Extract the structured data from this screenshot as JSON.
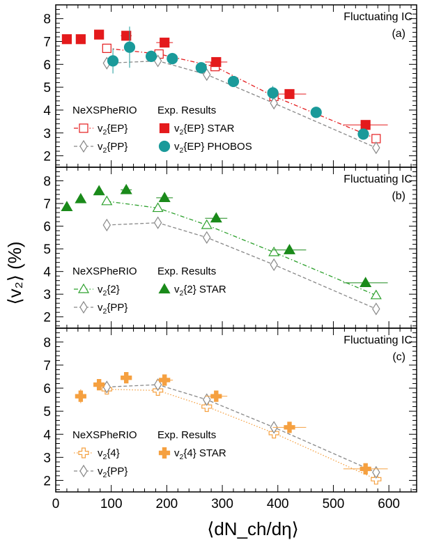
{
  "figure": {
    "xlabel": "⟨dN_ch/dη⟩",
    "ylabel": "⟨v₂⟩ (%)",
    "x_ticks": [
      "0",
      "100",
      "200",
      "300",
      "400",
      "500",
      "600"
    ],
    "y_ticks": [
      "2",
      "3",
      "4",
      "5",
      "6",
      "7",
      "8"
    ]
  },
  "chart_data": [
    {
      "type": "scatter",
      "panel_title": "Fluctuating IC",
      "panel_tag": "(a)",
      "xlim": [
        0,
        650
      ],
      "ylim": [
        1.5,
        8.6
      ],
      "legend": {
        "model_header": "NeXSPheRIO",
        "exp_header": "Exp. Results"
      },
      "series": [
        {
          "name": "v2{EP}",
          "kind": "model",
          "color": "#e41a1c",
          "marker": "square-open",
          "line": "dashdot",
          "x": [
            92,
            186,
            287,
            393,
            577
          ],
          "y": [
            6.7,
            6.45,
            5.9,
            4.6,
            2.75
          ]
        },
        {
          "name": "v2{PP}",
          "kind": "model",
          "color": "#888888",
          "marker": "diamond-open",
          "line": "dash",
          "x": [
            92,
            184,
            272,
            393,
            577
          ],
          "y": [
            6.05,
            6.15,
            5.55,
            4.3,
            2.35
          ]
        },
        {
          "name": "v2{EP} STAR",
          "kind": "exp",
          "color": "#e41a1c",
          "marker": "square",
          "x": [
            20,
            45,
            78,
            127,
            196,
            289,
            421,
            558
          ],
          "y": [
            7.1,
            7.1,
            7.3,
            7.25,
            6.95,
            6.1,
            4.7,
            3.35
          ],
          "xerr": [
            0,
            0,
            0,
            10,
            15,
            20,
            30,
            40
          ]
        },
        {
          "name": "v2{EP} PHOBOS",
          "kind": "exp",
          "color": "#1a9a9a",
          "marker": "circle",
          "x": [
            103,
            133,
            172,
            210,
            262,
            320,
            391,
            469,
            554
          ],
          "y": [
            6.15,
            6.75,
            6.35,
            6.25,
            5.85,
            5.25,
            4.75,
            3.9,
            2.95
          ],
          "yerr": [
            0.55,
            0.9,
            0.25,
            0.25,
            0.2,
            0.2,
            0.3,
            0.2,
            0.2
          ]
        }
      ]
    },
    {
      "type": "scatter",
      "panel_title": "Fluctuating IC",
      "panel_tag": "(b)",
      "xlim": [
        0,
        650
      ],
      "ylim": [
        1.5,
        8.6
      ],
      "legend": {
        "model_header": "NeXSPheRIO",
        "exp_header": "Exp. Results"
      },
      "series": [
        {
          "name": "v2{2}",
          "kind": "model",
          "color": "#2ca02c",
          "marker": "triangle-open",
          "line": "dashdot",
          "x": [
            92,
            184,
            272,
            393,
            577
          ],
          "y": [
            7.1,
            6.8,
            6.05,
            4.85,
            2.95
          ]
        },
        {
          "name": "v2{PP}",
          "kind": "model",
          "color": "#888888",
          "marker": "diamond-open",
          "line": "dash",
          "x": [
            92,
            184,
            272,
            393,
            577
          ],
          "y": [
            6.05,
            6.15,
            5.5,
            4.3,
            2.35
          ]
        },
        {
          "name": "v2{2} STAR",
          "kind": "exp",
          "color": "#1a8a1a",
          "marker": "triangle",
          "x": [
            20,
            45,
            78,
            127,
            196,
            289,
            421,
            558
          ],
          "y": [
            6.85,
            7.2,
            7.55,
            7.6,
            7.25,
            6.35,
            4.95,
            3.5
          ],
          "xerr": [
            0,
            0,
            0,
            10,
            15,
            20,
            30,
            40
          ]
        }
      ]
    },
    {
      "type": "scatter",
      "panel_title": "Fluctuating IC",
      "panel_tag": "(c)",
      "xlim": [
        0,
        650
      ],
      "ylim": [
        1.5,
        8.6
      ],
      "legend": {
        "model_header": "NeXSPheRIO",
        "exp_header": "Exp. Results"
      },
      "series": [
        {
          "name": "v2{4}",
          "kind": "model",
          "color": "#f5a040",
          "marker": "cross-open",
          "line": "dot",
          "x": [
            92,
            184,
            272,
            393,
            577
          ],
          "y": [
            5.95,
            5.9,
            5.2,
            4.05,
            2.05
          ]
        },
        {
          "name": "v2{PP}",
          "kind": "model",
          "color": "#888888",
          "marker": "diamond-open",
          "line": "dash",
          "x": [
            92,
            184,
            272,
            393,
            577
          ],
          "y": [
            6.05,
            6.15,
            5.5,
            4.3,
            2.35
          ]
        },
        {
          "name": "v2{4} STAR",
          "kind": "exp",
          "color": "#f5a040",
          "marker": "cross",
          "x": [
            45,
            78,
            127,
            196,
            289,
            421,
            558
          ],
          "y": [
            5.65,
            6.15,
            6.45,
            6.35,
            5.65,
            4.3,
            2.5
          ],
          "xerr": [
            0,
            0,
            10,
            15,
            20,
            30,
            40
          ],
          "yerr": [
            0.3,
            0.15,
            0.1,
            0.1,
            0.1,
            0.1,
            0.1
          ]
        }
      ]
    }
  ]
}
